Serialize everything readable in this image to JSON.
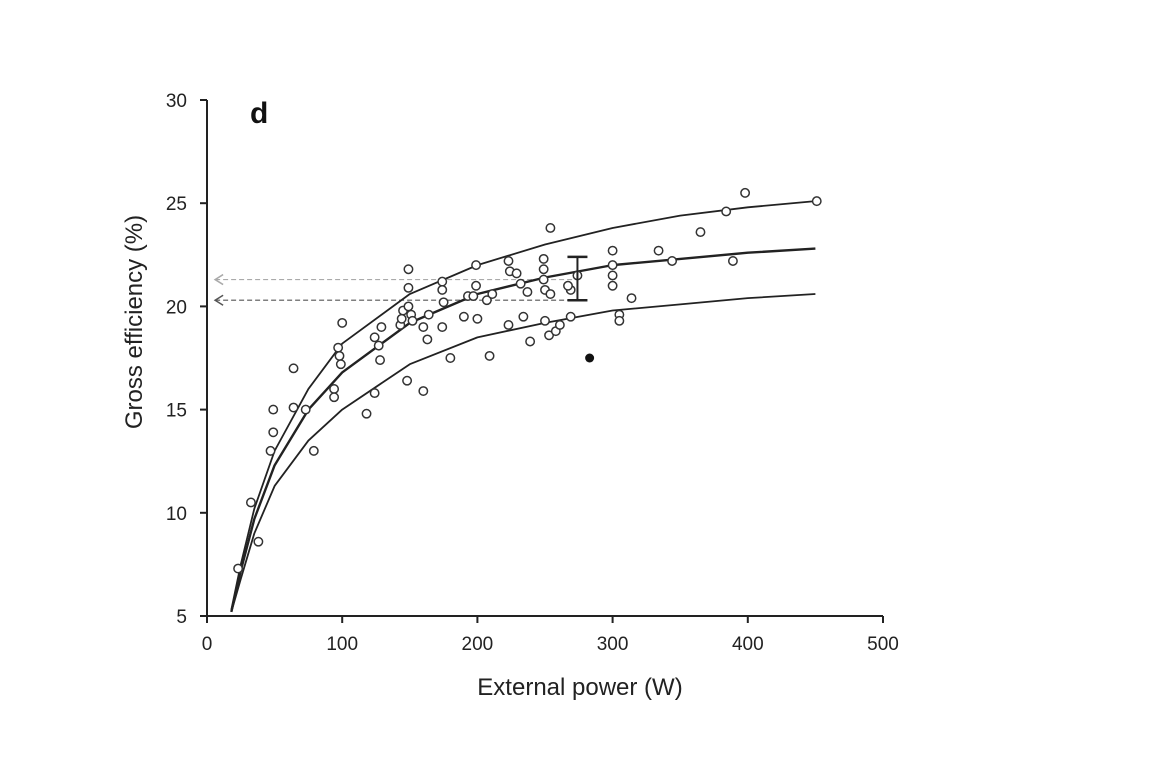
{
  "chart_data": {
    "type": "scatter",
    "panel_label": "d",
    "xlabel": "External power (W)",
    "ylabel": "Gross efficiency (%)",
    "xlim": [
      0,
      500
    ],
    "ylim": [
      5,
      30
    ],
    "xticks": [
      0,
      100,
      200,
      300,
      400,
      500
    ],
    "yticks": [
      5,
      10,
      15,
      20,
      25,
      30
    ],
    "grid": false,
    "points": [
      [
        23,
        7.3
      ],
      [
        32.5,
        10.5
      ],
      [
        38,
        8.6
      ],
      [
        47,
        13
      ],
      [
        49,
        13.9
      ],
      [
        49,
        15
      ],
      [
        64,
        17
      ],
      [
        64,
        15.1
      ],
      [
        73,
        15
      ],
      [
        79,
        13
      ],
      [
        94,
        16
      ],
      [
        94,
        15.6
      ],
      [
        97,
        18
      ],
      [
        98,
        17.6
      ],
      [
        99,
        17.2
      ],
      [
        100,
        19.2
      ],
      [
        118,
        14.8
      ],
      [
        124,
        15.8
      ],
      [
        124,
        18.5
      ],
      [
        127,
        18.1
      ],
      [
        128,
        17.4
      ],
      [
        129,
        19
      ],
      [
        143,
        19.1
      ],
      [
        144,
        19.4
      ],
      [
        145,
        19.8
      ],
      [
        148,
        16.4
      ],
      [
        149,
        21.8
      ],
      [
        149,
        20.9
      ],
      [
        149,
        20
      ],
      [
        151,
        19.6
      ],
      [
        152,
        19.3
      ],
      [
        160,
        15.9
      ],
      [
        160,
        19
      ],
      [
        163,
        18.4
      ],
      [
        164,
        19.6
      ],
      [
        174,
        21.2
      ],
      [
        174,
        20.8
      ],
      [
        175,
        20.2
      ],
      [
        174,
        19
      ],
      [
        180,
        17.5
      ],
      [
        190,
        19.5
      ],
      [
        193,
        20.5
      ],
      [
        197,
        20.5
      ],
      [
        199,
        22
      ],
      [
        199,
        21
      ],
      [
        200,
        19.4
      ],
      [
        207,
        20.3
      ],
      [
        209,
        17.6
      ],
      [
        211,
        20.6
      ],
      [
        223,
        22.2
      ],
      [
        224,
        21.7
      ],
      [
        223,
        19.1
      ],
      [
        229,
        21.6
      ],
      [
        232,
        21.1
      ],
      [
        234,
        19.5
      ],
      [
        237,
        20.7
      ],
      [
        239,
        18.3
      ],
      [
        249,
        22.3
      ],
      [
        249,
        21.8
      ],
      [
        249,
        21.3
      ],
      [
        250,
        20.8
      ],
      [
        250,
        19.3
      ],
      [
        254,
        23.8
      ],
      [
        254,
        20.6
      ],
      [
        253,
        18.6
      ],
      [
        258,
        18.8
      ],
      [
        261,
        19.1
      ],
      [
        269,
        19.5
      ],
      [
        269,
        20.8
      ],
      [
        267,
        21
      ],
      [
        274,
        21.5
      ],
      [
        300,
        22.7
      ],
      [
        300,
        22
      ],
      [
        300,
        21.5
      ],
      [
        300,
        21
      ],
      [
        305,
        19.6
      ],
      [
        305,
        19.3
      ],
      [
        314,
        20.4
      ],
      [
        334,
        22.7
      ],
      [
        344,
        22.2
      ],
      [
        365,
        23.6
      ],
      [
        384,
        24.6
      ],
      [
        389,
        22.2
      ],
      [
        398,
        25.5
      ],
      [
        451,
        25.1
      ]
    ],
    "filled_point": [
      283,
      17.5
    ],
    "error_bar": {
      "x": 274,
      "low": 20.3,
      "high": 22.4
    },
    "reference_lines": [
      {
        "style": "dashed-light",
        "y": 21.3,
        "x_from": 6,
        "x_to": 275
      },
      {
        "style": "dashed",
        "y": 20.3,
        "x_from": 6,
        "x_to": 275
      }
    ],
    "series": [
      {
        "name": "upper",
        "values": [
          [
            18,
            5.3
          ],
          [
            25,
            7.5
          ],
          [
            35,
            10.2
          ],
          [
            50,
            13
          ],
          [
            75,
            16
          ],
          [
            100,
            18.2
          ],
          [
            150,
            20.6
          ],
          [
            200,
            22
          ],
          [
            250,
            23
          ],
          [
            300,
            23.8
          ],
          [
            350,
            24.4
          ],
          [
            400,
            24.8
          ],
          [
            450,
            25.1
          ]
        ]
      },
      {
        "name": "mean",
        "values": [
          [
            18,
            5.2
          ],
          [
            25,
            7.2
          ],
          [
            35,
            9.7
          ],
          [
            50,
            12.3
          ],
          [
            75,
            15
          ],
          [
            100,
            16.8
          ],
          [
            150,
            19.2
          ],
          [
            200,
            20.6
          ],
          [
            250,
            21.4
          ],
          [
            300,
            22
          ],
          [
            350,
            22.3
          ],
          [
            400,
            22.6
          ],
          [
            450,
            22.8
          ]
        ]
      },
      {
        "name": "lower",
        "values": [
          [
            18,
            5.2
          ],
          [
            25,
            6.8
          ],
          [
            35,
            9
          ],
          [
            50,
            11.3
          ],
          [
            75,
            13.5
          ],
          [
            100,
            15
          ],
          [
            150,
            17.2
          ],
          [
            200,
            18.5
          ],
          [
            250,
            19.2
          ],
          [
            300,
            19.8
          ],
          [
            350,
            20.1
          ],
          [
            400,
            20.4
          ],
          [
            450,
            20.6
          ]
        ]
      }
    ]
  }
}
